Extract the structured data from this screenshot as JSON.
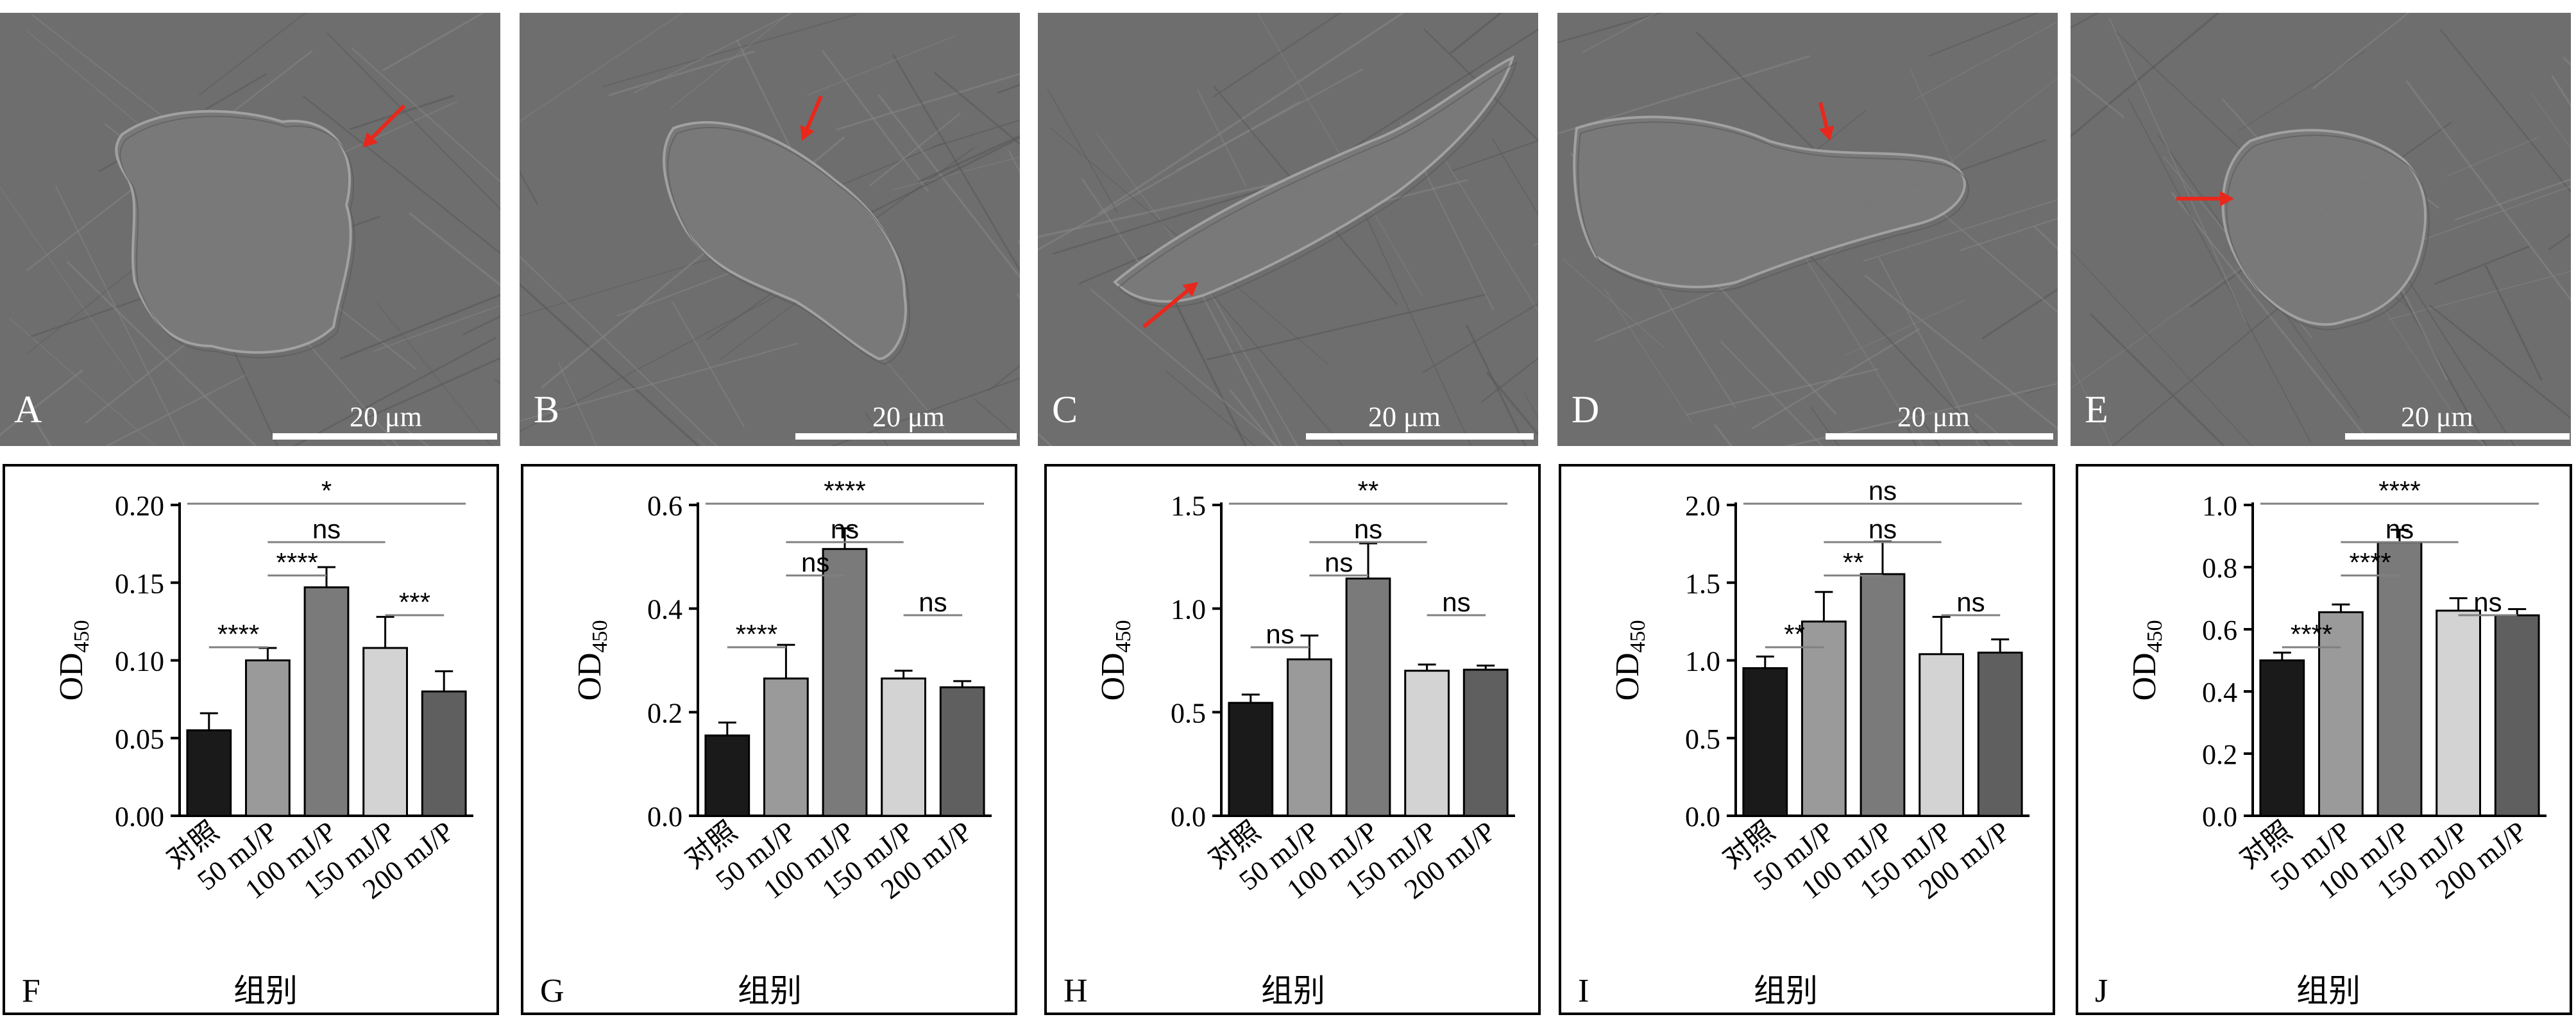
{
  "images": [
    {
      "letter": "A",
      "scale": "20 μm",
      "arrow": [
        [
          630,
          145
        ],
        [
          565,
          210
        ]
      ],
      "cell": "plate"
    },
    {
      "letter": "B",
      "scale": "20 μm",
      "arrow": [
        [
          470,
          130
        ],
        [
          440,
          200
        ]
      ],
      "cell": "elong"
    },
    {
      "letter": "C",
      "scale": "20 μm",
      "arrow": [
        [
          165,
          490
        ],
        [
          250,
          420
        ]
      ],
      "cell": "spindle"
    },
    {
      "letter": "D",
      "scale": "20 μm",
      "arrow": [
        [
          410,
          140
        ],
        [
          425,
          200
        ]
      ],
      "cell": "flat"
    },
    {
      "letter": "E",
      "scale": "20 μm",
      "arrow": [
        [
          165,
          290
        ],
        [
          255,
          290
        ]
      ],
      "cell": "poly"
    }
  ],
  "colors": {
    "sem_bg": "#6e6e6e",
    "arrow": "#e8281c",
    "bars": [
      "#1a1a1a",
      "#9a9a9a",
      "#7a7a7a",
      "#d3d3d3",
      "#5f5f5f"
    ]
  },
  "chart_data": [
    {
      "type": "bar",
      "letter": "F",
      "xlabel": "组别",
      "ylabel": "OD",
      "ylabel_sub": "450",
      "categories": [
        "对照",
        "50 mJ/P",
        "100 mJ/P",
        "150 mJ/P",
        "200 mJ/P"
      ],
      "values": [
        0.055,
        0.1,
        0.147,
        0.108,
        0.08
      ],
      "errors": [
        0.011,
        0.008,
        0.013,
        0.02,
        0.013
      ],
      "ylim": [
        0,
        0.2
      ],
      "yticks": [
        "0.00",
        "0.05",
        "0.10",
        "0.15",
        "0.20"
      ],
      "tick_values": [
        0,
        0.05,
        0.1,
        0.15,
        0.2
      ],
      "comparisons": [
        {
          "from": 0,
          "to": 4,
          "label": "*",
          "level": 0
        },
        {
          "from": 1,
          "to": 3,
          "label": "ns",
          "level": 1
        },
        {
          "from": 1,
          "to": 2,
          "label": "****",
          "level": 2
        },
        {
          "from": 3,
          "to": 4,
          "label": "***",
          "level": 3
        },
        {
          "from": 0,
          "to": 1,
          "label": "****",
          "level": 4
        }
      ]
    },
    {
      "type": "bar",
      "letter": "G",
      "xlabel": "组别",
      "ylabel": "OD",
      "ylabel_sub": "450",
      "categories": [
        "对照",
        "50 mJ/P",
        "100 mJ/P",
        "150 mJ/P",
        "200 mJ/P"
      ],
      "values": [
        0.155,
        0.265,
        0.515,
        0.265,
        0.248
      ],
      "errors": [
        0.025,
        0.065,
        0.04,
        0.015,
        0.012
      ],
      "ylim": [
        0,
        0.6
      ],
      "yticks": [
        "0.0",
        "0.2",
        "0.4",
        "0.6"
      ],
      "tick_values": [
        0,
        0.2,
        0.4,
        0.6
      ],
      "comparisons": [
        {
          "from": 0,
          "to": 4,
          "label": "****",
          "level": 0
        },
        {
          "from": 1,
          "to": 3,
          "label": "ns",
          "level": 1
        },
        {
          "from": 1,
          "to": 2,
          "label": "ns",
          "level": 2
        },
        {
          "from": 3,
          "to": 4,
          "label": "ns",
          "level": 3
        },
        {
          "from": 0,
          "to": 1,
          "label": "****",
          "level": 4
        }
      ]
    },
    {
      "type": "bar",
      "letter": "H",
      "xlabel": "组别",
      "ylabel": "OD",
      "ylabel_sub": "450",
      "categories": [
        "对照",
        "50 mJ/P",
        "100 mJ/P",
        "150 mJ/P",
        "200 mJ/P"
      ],
      "values": [
        0.545,
        0.755,
        1.145,
        0.7,
        0.705
      ],
      "errors": [
        0.04,
        0.115,
        0.17,
        0.03,
        0.02
      ],
      "ylim": [
        0,
        1.5
      ],
      "yticks": [
        "0.0",
        "0.5",
        "1.0",
        "1.5"
      ],
      "tick_values": [
        0,
        0.5,
        1.0,
        1.5
      ],
      "comparisons": [
        {
          "from": 0,
          "to": 4,
          "label": "**",
          "level": 0
        },
        {
          "from": 1,
          "to": 3,
          "label": "ns",
          "level": 1
        },
        {
          "from": 1,
          "to": 2,
          "label": "ns",
          "level": 2
        },
        {
          "from": 3,
          "to": 4,
          "label": "ns",
          "level": 3
        },
        {
          "from": 0,
          "to": 1,
          "label": "ns",
          "level": 4
        }
      ]
    },
    {
      "type": "bar",
      "letter": "I",
      "xlabel": "组别",
      "ylabel": "OD",
      "ylabel_sub": "450",
      "categories": [
        "对照",
        "50 mJ/P",
        "100 mJ/P",
        "150 mJ/P",
        "200 mJ/P"
      ],
      "values": [
        0.95,
        1.25,
        1.555,
        1.04,
        1.05
      ],
      "errors": [
        0.075,
        0.19,
        0.21,
        0.24,
        0.085
      ],
      "ylim": [
        0,
        2.0
      ],
      "yticks": [
        "0.0",
        "0.5",
        "1.0",
        "1.5",
        "2.0"
      ],
      "tick_values": [
        0,
        0.5,
        1.0,
        1.5,
        2.0
      ],
      "comparisons": [
        {
          "from": 0,
          "to": 4,
          "label": "ns",
          "level": 0
        },
        {
          "from": 1,
          "to": 3,
          "label": "ns",
          "level": 1
        },
        {
          "from": 1,
          "to": 2,
          "label": "**",
          "level": 2
        },
        {
          "from": 3,
          "to": 4,
          "label": "ns",
          "level": 3
        },
        {
          "from": 0,
          "to": 1,
          "label": "**",
          "level": 4
        }
      ]
    },
    {
      "type": "bar",
      "letter": "J",
      "xlabel": "组别",
      "ylabel": "OD",
      "ylabel_sub": "450",
      "categories": [
        "对照",
        "50 mJ/P",
        "100 mJ/P",
        "150 mJ/P",
        "200 mJ/P"
      ],
      "values": [
        0.5,
        0.655,
        0.88,
        0.66,
        0.645
      ],
      "errors": [
        0.025,
        0.025,
        0.04,
        0.04,
        0.02
      ],
      "ylim": [
        0,
        1.0
      ],
      "yticks": [
        "0.0",
        "0.2",
        "0.4",
        "0.6",
        "0.8",
        "1.0"
      ],
      "tick_values": [
        0,
        0.2,
        0.4,
        0.6,
        0.8,
        1.0
      ],
      "comparisons": [
        {
          "from": 0,
          "to": 4,
          "label": "****",
          "level": 0
        },
        {
          "from": 1,
          "to": 3,
          "label": "ns",
          "level": 1
        },
        {
          "from": 1,
          "to": 2,
          "label": "****",
          "level": 2
        },
        {
          "from": 3,
          "to": 4,
          "label": "ns",
          "level": 3
        },
        {
          "from": 0,
          "to": 1,
          "label": "****",
          "level": 4
        }
      ]
    }
  ]
}
